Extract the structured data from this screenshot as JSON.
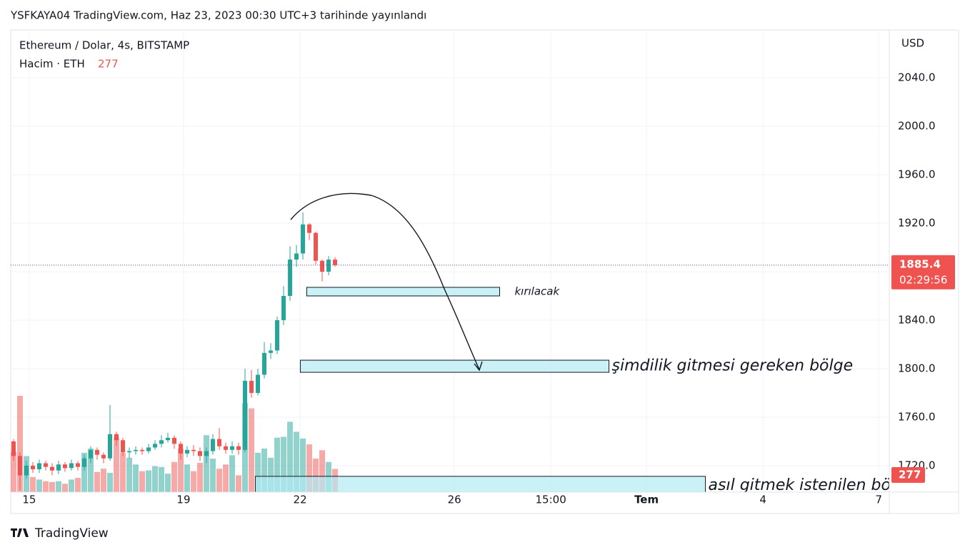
{
  "header": {
    "publisher": "YSFKAYA04 TradingView.com, Haz 23, 2023 00:30 UTC+3 tarihinde yayınlandı"
  },
  "footer": {
    "brand": "TradingView"
  },
  "chart_data": {
    "type": "candlestick",
    "title": "Ethereum / Dolar, 4s, BITSTAMP",
    "volume_label": "Hacim · ETH",
    "currency": "USD",
    "countdown": "02:29:56",
    "up_color": "#26a69a",
    "down_color": "#ef5350",
    "open": [
      1746,
      1740,
      1728,
      1712,
      1720,
      1717,
      1722,
      1719,
      1716,
      1721,
      1718,
      1722,
      1719,
      1726,
      1733,
      1729,
      1726,
      1746,
      1741,
      1731,
      1732,
      1733,
      1732,
      1735,
      1738,
      1741,
      1743,
      1738,
      1730,
      1733,
      1732,
      1728,
      1732,
      1742,
      1736,
      1733,
      1736,
      1733,
      1790,
      1780,
      1795,
      1813,
      1815,
      1840,
      1860,
      1890,
      1895,
      1919,
      1912,
      1889,
      1880,
      1890
    ],
    "close": [
      1740,
      1728,
      1712,
      1720,
      1717,
      1722,
      1719,
      1716,
      1721,
      1718,
      1722,
      1719,
      1726,
      1733,
      1729,
      1726,
      1746,
      1741,
      1731,
      1732,
      1733,
      1732,
      1735,
      1738,
      1741,
      1743,
      1738,
      1730,
      1733,
      1732,
      1728,
      1732,
      1742,
      1736,
      1733,
      1736,
      1733,
      1790,
      1780,
      1795,
      1813,
      1815,
      1840,
      1860,
      1890,
      1895,
      1919,
      1912,
      1889,
      1880,
      1890,
      1885.4
    ],
    "high": [
      1749,
      1742,
      1731,
      1724,
      1723,
      1725,
      1724,
      1722,
      1724,
      1723,
      1725,
      1724,
      1729,
      1736,
      1735,
      1731,
      1770,
      1748,
      1743,
      1735,
      1736,
      1735,
      1738,
      1741,
      1745,
      1747,
      1745,
      1740,
      1736,
      1737,
      1735,
      1735,
      1746,
      1751,
      1739,
      1740,
      1739,
      1800,
      1799,
      1800,
      1822,
      1821,
      1843,
      1868,
      1901,
      1902,
      1929,
      1920,
      1913,
      1890,
      1893,
      1892
    ],
    "low": [
      1735,
      1724,
      1700,
      1709,
      1714,
      1714,
      1716,
      1712,
      1713,
      1715,
      1716,
      1716,
      1716,
      1722,
      1725,
      1722,
      1724,
      1736,
      1728,
      1726,
      1729,
      1729,
      1730,
      1733,
      1735,
      1739,
      1734,
      1725,
      1727,
      1728,
      1724,
      1722,
      1729,
      1733,
      1730,
      1730,
      1729,
      1731,
      1776,
      1778,
      1792,
      1808,
      1812,
      1836,
      1856,
      1884,
      1890,
      1906,
      1886,
      1872,
      1877,
      1884
    ],
    "volume": [
      160,
      480,
      1150,
      430,
      180,
      150,
      130,
      120,
      130,
      100,
      150,
      170,
      470,
      520,
      240,
      280,
      230,
      650,
      470,
      410,
      330,
      250,
      260,
      310,
      300,
      220,
      360,
      520,
      330,
      250,
      350,
      680,
      400,
      280,
      330,
      440,
      200,
      1060,
      1000,
      470,
      520,
      410,
      650,
      660,
      840,
      720,
      640,
      570,
      400,
      500,
      360,
      277
    ],
    "xlim": [
      0.56,
      137.2
    ],
    "xticks": [
      {
        "value": 3.44,
        "label": "15"
      },
      {
        "value": 27.44,
        "label": "19"
      },
      {
        "value": 45.56,
        "label": "22"
      },
      {
        "value": 69.56,
        "label": "26"
      },
      {
        "value": 84.56,
        "label": "15:00"
      },
      {
        "value": 99.44,
        "label": "Tem"
      },
      {
        "value": 117.56,
        "label": "4"
      },
      {
        "value": 135.56,
        "label": "7"
      }
    ],
    "ylim": [
      1698.2,
      2079.4
    ],
    "yticks": [
      {
        "value": 1720,
        "label": "1720.0"
      },
      {
        "value": 1760,
        "label": "1760.0"
      },
      {
        "value": 1800,
        "label": "1800.0"
      },
      {
        "value": 1840,
        "label": "1840.0"
      },
      {
        "value": 1880,
        "label": "1880.0"
      },
      {
        "value": 1920,
        "label": "1920.0"
      },
      {
        "value": 1960,
        "label": "1960.0"
      },
      {
        "value": 2000,
        "label": "2000.0"
      },
      {
        "value": 2040,
        "label": "2040.0"
      }
    ],
    "grid": true,
    "zones": [
      {
        "label": "kırılacak",
        "start": 46.6,
        "end": 76.6,
        "low": 1860,
        "high": 1867.1
      },
      {
        "label": "şimdilik gitmesi gereken bölge",
        "start": 45.6,
        "end": 93.6,
        "low": 1797,
        "high": 1807
      },
      {
        "label": "asıl gitmek istenilen bölge",
        "start": 38.6,
        "end": 108.6,
        "low": 1690,
        "high": 1711.2
      }
    ]
  }
}
